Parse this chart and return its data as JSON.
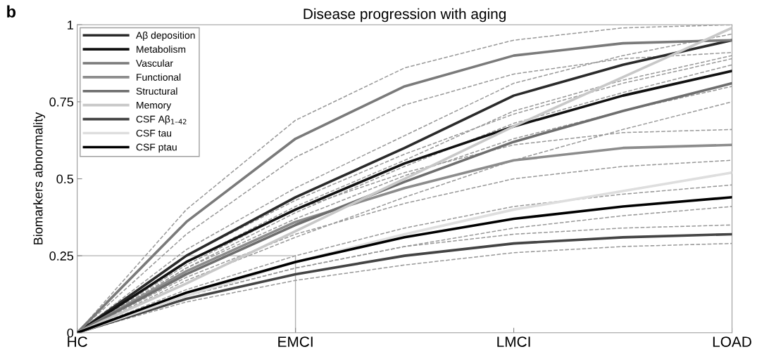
{
  "chart_data": {
    "type": "line",
    "title": "Disease progression with aging",
    "ylabel": "Biomarkers abnormality",
    "annotations": [
      "b"
    ],
    "categories": [
      "HC",
      null,
      "EMCI",
      null,
      "LMCI",
      null,
      "LOAD"
    ],
    "ylim": [
      0,
      1
    ],
    "yticks": [
      0,
      0.25,
      0.5,
      0.75,
      1
    ],
    "grid": false,
    "legend": "top left",
    "line_style": "solid",
    "marker": "none",
    "ref_lines": [
      {
        "axis": "y",
        "value": 0.25,
        "color": "#b0b0b0"
      },
      {
        "axis": "x",
        "value": "EMCI",
        "color": "#b0b0b0"
      }
    ],
    "series": [
      {
        "name": "Aβ deposition",
        "color": "#2a2a2a",
        "values": [
          0,
          0.25,
          0.44,
          0.6,
          0.77,
          0.87,
          0.95
        ]
      },
      {
        "name": "Metabolism",
        "color": "#111111",
        "values": [
          0,
          0.23,
          0.4,
          0.55,
          0.67,
          0.77,
          0.85
        ]
      },
      {
        "name": "Vascular",
        "color": "#7a7a7a",
        "values": [
          0,
          0.36,
          0.63,
          0.8,
          0.9,
          0.94,
          0.95
        ]
      },
      {
        "name": "Functional",
        "color": "#8c8c8c",
        "values": [
          0,
          0.2,
          0.36,
          0.47,
          0.56,
          0.6,
          0.61
        ]
      },
      {
        "name": "Structural",
        "color": "#6e6e6e",
        "values": [
          0,
          0.19,
          0.35,
          0.49,
          0.62,
          0.72,
          0.81
        ]
      },
      {
        "name": "Memory",
        "color": "#c8c8c8",
        "values": [
          0,
          0.16,
          0.33,
          0.5,
          0.67,
          0.83,
          0.99
        ]
      },
      {
        "name": "CSF Aβ$_{1–42}$",
        "color": "#444444",
        "values": [
          0,
          0.11,
          0.19,
          0.25,
          0.29,
          0.31,
          0.32
        ]
      },
      {
        "name": "CSF tau",
        "color": "#dedede",
        "values": [
          0,
          0.12,
          0.23,
          0.32,
          0.4,
          0.46,
          0.52
        ]
      },
      {
        "name": "CSF ptau",
        "color": "#000000",
        "values": [
          0,
          0.13,
          0.23,
          0.31,
          0.37,
          0.41,
          0.44
        ]
      },
      {
        "color": "#999999",
        "line_style": "dashed",
        "values": [
          0,
          0.23,
          0.41,
          0.56,
          0.72,
          0.82,
          0.9
        ]
      },
      {
        "color": "#999999",
        "line_style": "dashed",
        "values": [
          0,
          0.27,
          0.47,
          0.64,
          0.81,
          0.9,
          0.97
        ]
      },
      {
        "color": "#999999",
        "line_style": "dashed",
        "values": [
          0,
          0.21,
          0.37,
          0.51,
          0.63,
          0.72,
          0.8
        ]
      },
      {
        "color": "#999999",
        "line_style": "dashed",
        "values": [
          0,
          0.25,
          0.43,
          0.58,
          0.71,
          0.81,
          0.89
        ]
      },
      {
        "color": "#999999",
        "line_style": "dashed",
        "values": [
          0,
          0.32,
          0.57,
          0.74,
          0.84,
          0.89,
          0.91
        ]
      },
      {
        "color": "#999999",
        "line_style": "dashed",
        "values": [
          0,
          0.4,
          0.69,
          0.86,
          0.95,
          0.99,
          1
        ]
      },
      {
        "color": "#999999",
        "line_style": "dashed",
        "values": [
          0,
          0.18,
          0.32,
          0.42,
          0.5,
          0.54,
          0.56
        ]
      },
      {
        "color": "#999999",
        "line_style": "dashed",
        "values": [
          0,
          0.22,
          0.4,
          0.52,
          0.61,
          0.65,
          0.66
        ]
      },
      {
        "color": "#999999",
        "line_style": "dashed",
        "values": [
          0,
          0.17,
          0.31,
          0.44,
          0.56,
          0.66,
          0.75
        ]
      },
      {
        "color": "#999999",
        "line_style": "dashed",
        "values": [
          0,
          0.21,
          0.39,
          0.54,
          0.68,
          0.78,
          0.87
        ]
      },
      {
        "color": "#999999",
        "line_style": "dashed",
        "values": [
          0,
          0.1,
          0.17,
          0.22,
          0.26,
          0.28,
          0.29
        ]
      },
      {
        "color": "#999999",
        "line_style": "dashed",
        "values": [
          0,
          0.12,
          0.21,
          0.28,
          0.32,
          0.34,
          0.35
        ]
      },
      {
        "color": "#999999",
        "line_style": "dashed",
        "values": [
          0,
          0.12,
          0.21,
          0.28,
          0.34,
          0.38,
          0.41
        ]
      },
      {
        "color": "#999999",
        "line_style": "dashed",
        "values": [
          0,
          0.14,
          0.25,
          0.34,
          0.41,
          0.45,
          0.48
        ]
      }
    ]
  }
}
